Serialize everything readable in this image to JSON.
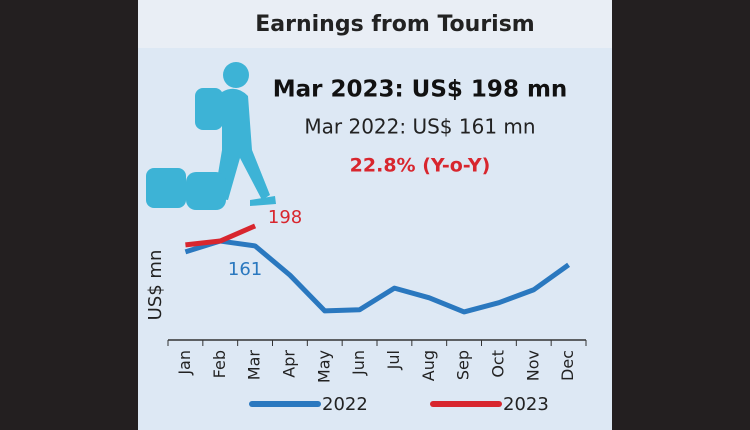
{
  "chart_data": {
    "type": "line",
    "title": "Earnings from Tourism",
    "annotations": [
      "Mar 2023: US$ 198 mn",
      "Mar 2022: US$ 161 mn",
      "22.8% (Y-o-Y)"
    ],
    "y_label": "US$ mn",
    "categories": [
      "Jan",
      "Feb",
      "Mar",
      "Apr",
      "May",
      "Jun",
      "Jul",
      "Aug",
      "Sep",
      "Oct",
      "Nov",
      "Dec"
    ],
    "series": [
      {
        "name": "2022",
        "color": "#2a78bf",
        "values": [
          150,
          170,
          161,
          107,
          41,
          43,
          83,
          65,
          39,
          56,
          80,
          126
        ],
        "labeled_index": 2
      },
      {
        "name": "2023",
        "color": "#d8262e",
        "values": [
          163,
          170,
          198,
          null,
          null,
          null,
          null,
          null,
          null,
          null,
          null,
          null
        ],
        "labeled_index": 2
      }
    ],
    "ylim": [
      0,
      220
    ]
  }
}
